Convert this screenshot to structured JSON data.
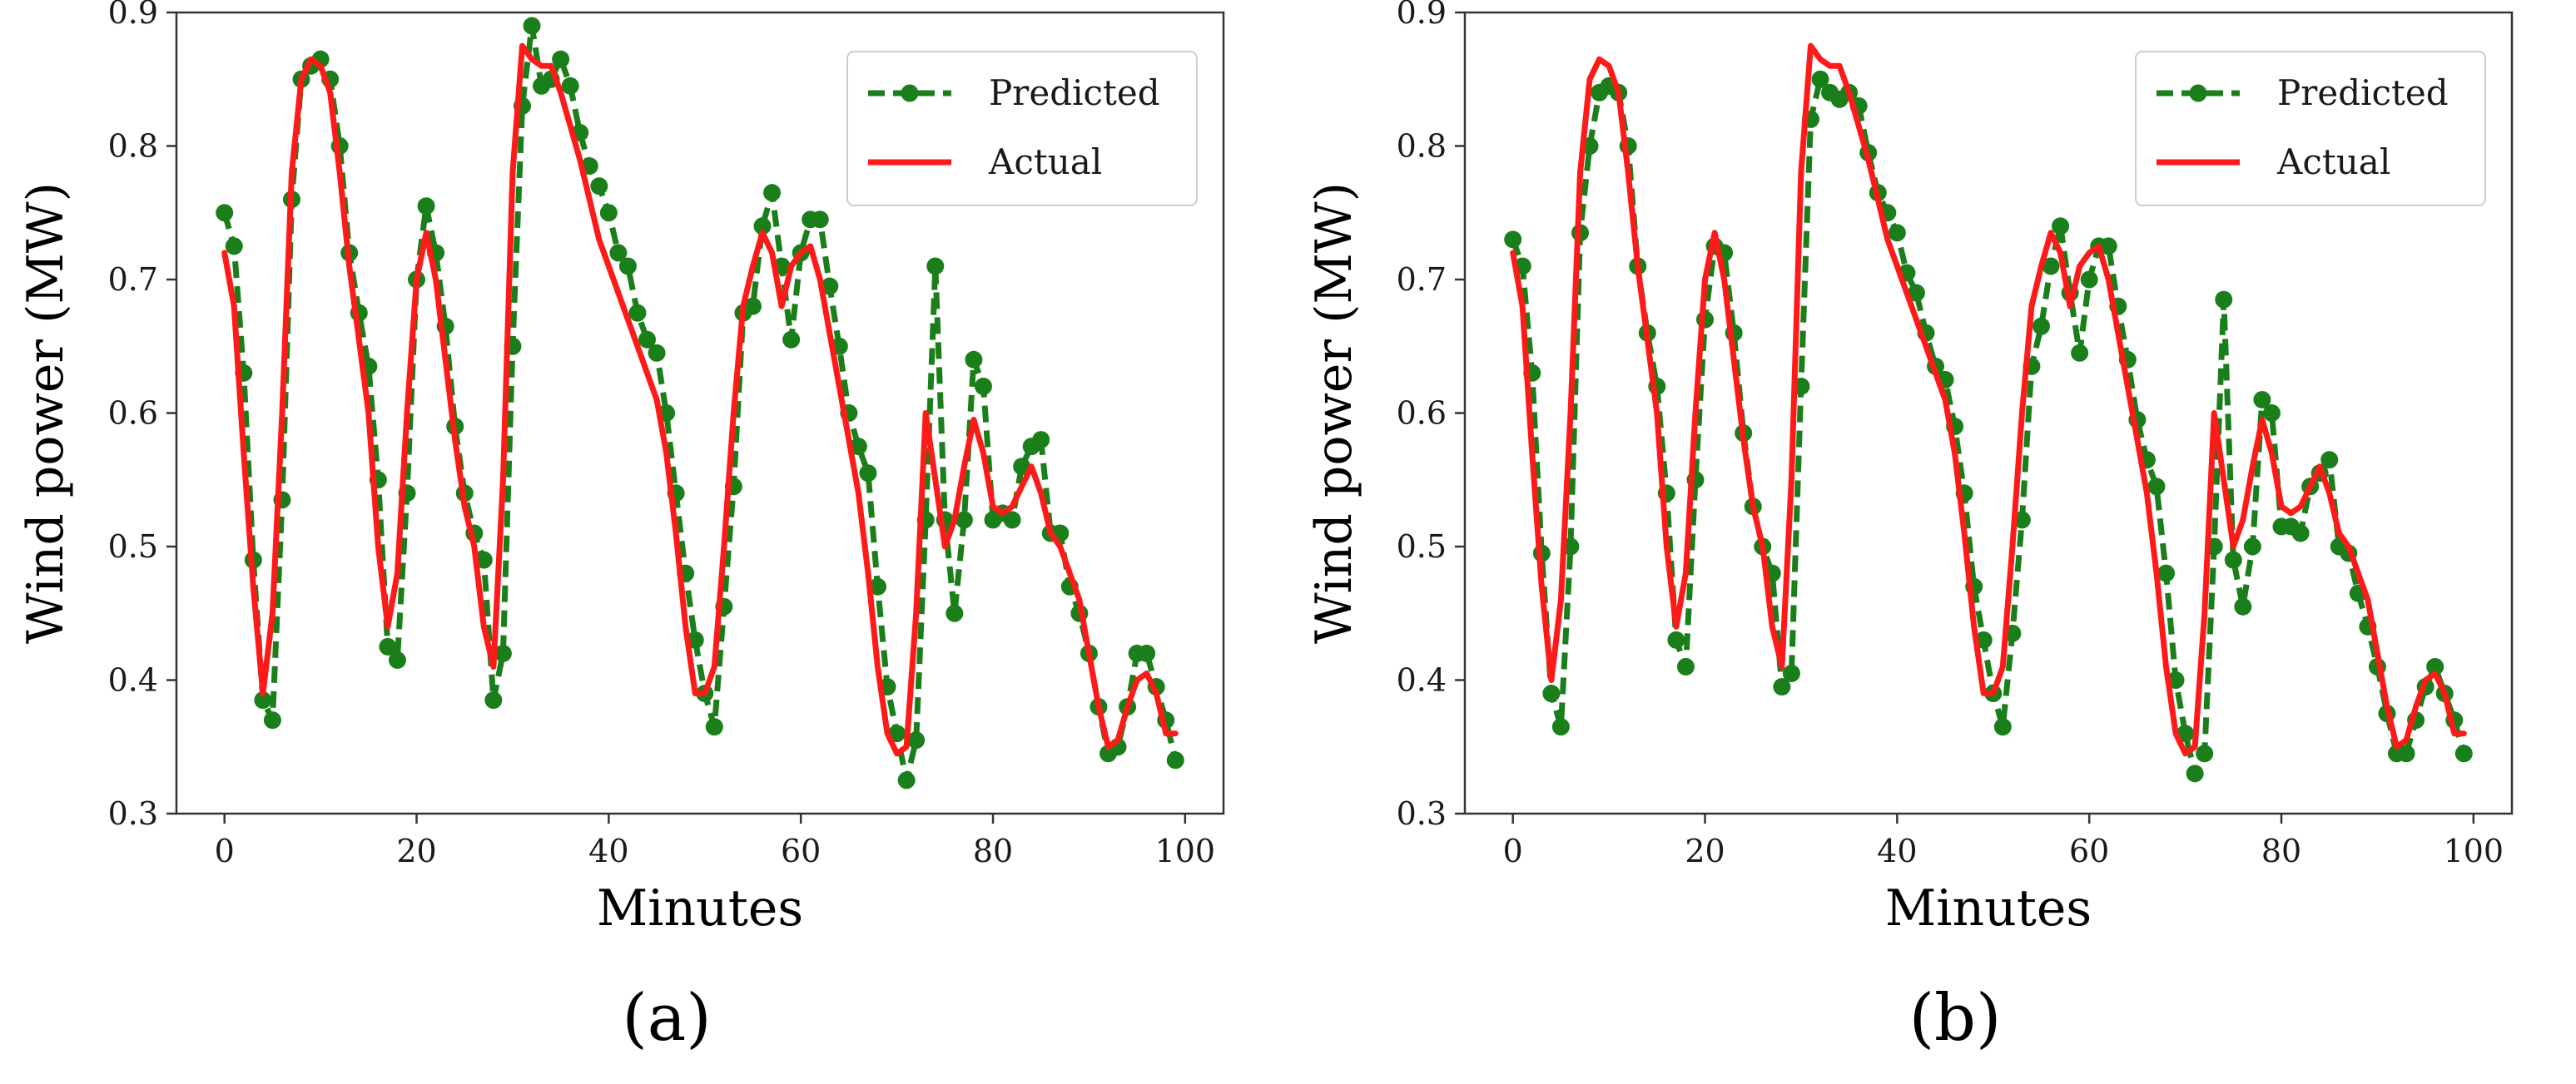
{
  "colors": {
    "predicted": "#1a7f1a",
    "actual": "#ff1a1a",
    "axis": "#333333",
    "legend_border": "#cccccc"
  },
  "chart_data": [
    {
      "type": "line",
      "caption": "(a)",
      "xlabel": "Minutes",
      "ylabel": "Wind power (MW)",
      "xlim": [
        -5,
        104
      ],
      "ylim": [
        0.3,
        0.9
      ],
      "xticks": [
        0,
        20,
        40,
        60,
        80,
        100
      ],
      "xtick_labels": [
        "0",
        "20",
        "40",
        "60",
        "80",
        "100"
      ],
      "yticks": [
        0.3,
        0.4,
        0.5,
        0.6,
        0.7,
        0.8,
        0.9
      ],
      "ytick_labels": [
        "0.3",
        "0.4",
        "0.5",
        "0.6",
        "0.7",
        "0.8",
        "0.9"
      ],
      "legend": [
        "Predicted",
        "Actual"
      ],
      "series": [
        {
          "name": "Predicted",
          "style": "dashed-with-markers",
          "x": [
            0,
            1,
            2,
            3,
            4,
            5,
            6,
            7,
            8,
            9,
            10,
            11,
            12,
            13,
            14,
            15,
            16,
            17,
            18,
            19,
            20,
            21,
            22,
            23,
            24,
            25,
            26,
            27,
            28,
            29,
            30,
            31,
            32,
            33,
            34,
            35,
            36,
            37,
            38,
            39,
            40,
            41,
            42,
            43,
            44,
            45,
            46,
            47,
            48,
            49,
            50,
            51,
            52,
            53,
            54,
            55,
            56,
            57,
            58,
            59,
            60,
            61,
            62,
            63,
            64,
            65,
            66,
            67,
            68,
            69,
            70,
            71,
            72,
            73,
            74,
            75,
            76,
            77,
            78,
            79,
            80,
            81,
            82,
            83,
            84,
            85,
            86,
            87,
            88,
            89,
            90,
            91,
            92,
            93,
            94,
            95,
            96,
            97,
            98,
            99
          ],
          "values": [
            0.75,
            0.725,
            0.63,
            0.49,
            0.385,
            0.37,
            0.535,
            0.76,
            0.85,
            0.86,
            0.865,
            0.85,
            0.8,
            0.72,
            0.675,
            0.635,
            0.55,
            0.425,
            0.415,
            0.54,
            0.7,
            0.755,
            0.72,
            0.665,
            0.59,
            0.54,
            0.51,
            0.49,
            0.385,
            0.42,
            0.65,
            0.83,
            0.89,
            0.845,
            0.85,
            0.865,
            0.845,
            0.81,
            0.785,
            0.77,
            0.75,
            0.72,
            0.71,
            0.675,
            0.655,
            0.645,
            0.6,
            0.54,
            0.48,
            0.43,
            0.39,
            0.365,
            0.455,
            0.545,
            0.675,
            0.68,
            0.74,
            0.765,
            0.71,
            0.655,
            0.72,
            0.745,
            0.745,
            0.695,
            0.65,
            0.6,
            0.575,
            0.555,
            0.47,
            0.395,
            0.36,
            0.325,
            0.355,
            0.52,
            0.71,
            0.52,
            0.45,
            0.52,
            0.64,
            0.62,
            0.52,
            0.525,
            0.52,
            0.56,
            0.575,
            0.58,
            0.51,
            0.51,
            0.47,
            0.45,
            0.42,
            0.38,
            0.345,
            0.35,
            0.38,
            0.42,
            0.42,
            0.395,
            0.37,
            0.34
          ]
        },
        {
          "name": "Actual",
          "style": "solid",
          "x": [
            0,
            1,
            2,
            3,
            4,
            5,
            6,
            7,
            8,
            9,
            10,
            11,
            12,
            13,
            14,
            15,
            16,
            17,
            18,
            19,
            20,
            21,
            22,
            23,
            24,
            25,
            26,
            27,
            28,
            29,
            30,
            31,
            32,
            33,
            34,
            35,
            36,
            37,
            38,
            39,
            40,
            41,
            42,
            43,
            44,
            45,
            46,
            47,
            48,
            49,
            50,
            51,
            52,
            53,
            54,
            55,
            56,
            57,
            58,
            59,
            60,
            61,
            62,
            63,
            64,
            65,
            66,
            67,
            68,
            69,
            70,
            71,
            72,
            73,
            74,
            75,
            76,
            77,
            78,
            79,
            80,
            81,
            82,
            83,
            84,
            85,
            86,
            87,
            88,
            89,
            90,
            91,
            92,
            93,
            94,
            95,
            96,
            97,
            98,
            99
          ],
          "values": [
            0.72,
            0.68,
            0.57,
            0.47,
            0.39,
            0.45,
            0.6,
            0.78,
            0.85,
            0.865,
            0.86,
            0.84,
            0.78,
            0.71,
            0.655,
            0.6,
            0.5,
            0.44,
            0.48,
            0.6,
            0.7,
            0.735,
            0.7,
            0.64,
            0.58,
            0.53,
            0.5,
            0.44,
            0.41,
            0.55,
            0.78,
            0.875,
            0.865,
            0.86,
            0.86,
            0.84,
            0.815,
            0.79,
            0.76,
            0.73,
            0.71,
            0.69,
            0.67,
            0.65,
            0.63,
            0.61,
            0.57,
            0.51,
            0.44,
            0.39,
            0.39,
            0.41,
            0.5,
            0.6,
            0.68,
            0.71,
            0.735,
            0.72,
            0.68,
            0.71,
            0.72,
            0.725,
            0.7,
            0.66,
            0.62,
            0.58,
            0.54,
            0.48,
            0.41,
            0.36,
            0.345,
            0.35,
            0.45,
            0.6,
            0.55,
            0.5,
            0.52,
            0.56,
            0.595,
            0.57,
            0.53,
            0.525,
            0.53,
            0.545,
            0.56,
            0.54,
            0.51,
            0.5,
            0.48,
            0.46,
            0.42,
            0.38,
            0.35,
            0.355,
            0.38,
            0.4,
            0.405,
            0.39,
            0.36,
            0.36
          ]
        }
      ]
    },
    {
      "type": "line",
      "caption": "(b)",
      "xlabel": "Minutes",
      "ylabel": "Wind power (MW)",
      "xlim": [
        -5,
        104
      ],
      "ylim": [
        0.3,
        0.9
      ],
      "xticks": [
        0,
        20,
        40,
        60,
        80,
        100
      ],
      "xtick_labels": [
        "0",
        "20",
        "40",
        "60",
        "80",
        "100"
      ],
      "yticks": [
        0.3,
        0.4,
        0.5,
        0.6,
        0.7,
        0.8,
        0.9
      ],
      "ytick_labels": [
        "0.3",
        "0.4",
        "0.5",
        "0.6",
        "0.7",
        "0.8",
        "0.9"
      ],
      "legend": [
        "Predicted",
        "Actual"
      ],
      "series": [
        {
          "name": "Predicted",
          "style": "dashed-with-markers",
          "x": [
            0,
            1,
            2,
            3,
            4,
            5,
            6,
            7,
            8,
            9,
            10,
            11,
            12,
            13,
            14,
            15,
            16,
            17,
            18,
            19,
            20,
            21,
            22,
            23,
            24,
            25,
            26,
            27,
            28,
            29,
            30,
            31,
            32,
            33,
            34,
            35,
            36,
            37,
            38,
            39,
            40,
            41,
            42,
            43,
            44,
            45,
            46,
            47,
            48,
            49,
            50,
            51,
            52,
            53,
            54,
            55,
            56,
            57,
            58,
            59,
            60,
            61,
            62,
            63,
            64,
            65,
            66,
            67,
            68,
            69,
            70,
            71,
            72,
            73,
            74,
            75,
            76,
            77,
            78,
            79,
            80,
            81,
            82,
            83,
            84,
            85,
            86,
            87,
            88,
            89,
            90,
            91,
            92,
            93,
            94,
            95,
            96,
            97,
            98,
            99
          ],
          "values": [
            0.73,
            0.71,
            0.63,
            0.495,
            0.39,
            0.365,
            0.5,
            0.735,
            0.8,
            0.84,
            0.845,
            0.84,
            0.8,
            0.71,
            0.66,
            0.62,
            0.54,
            0.43,
            0.41,
            0.55,
            0.67,
            0.725,
            0.72,
            0.66,
            0.585,
            0.53,
            0.5,
            0.48,
            0.395,
            0.405,
            0.62,
            0.82,
            0.85,
            0.84,
            0.835,
            0.84,
            0.83,
            0.795,
            0.765,
            0.75,
            0.735,
            0.705,
            0.69,
            0.66,
            0.635,
            0.625,
            0.59,
            0.54,
            0.47,
            0.43,
            0.39,
            0.365,
            0.435,
            0.52,
            0.635,
            0.665,
            0.71,
            0.74,
            0.69,
            0.645,
            0.7,
            0.725,
            0.725,
            0.68,
            0.64,
            0.595,
            0.565,
            0.545,
            0.48,
            0.4,
            0.36,
            0.33,
            0.345,
            0.5,
            0.685,
            0.49,
            0.455,
            0.5,
            0.61,
            0.6,
            0.515,
            0.515,
            0.51,
            0.545,
            0.555,
            0.565,
            0.5,
            0.495,
            0.465,
            0.44,
            0.41,
            0.375,
            0.345,
            0.345,
            0.37,
            0.395,
            0.41,
            0.39,
            0.37,
            0.345
          ]
        },
        {
          "name": "Actual",
          "style": "solid",
          "x": [
            0,
            1,
            2,
            3,
            4,
            5,
            6,
            7,
            8,
            9,
            10,
            11,
            12,
            13,
            14,
            15,
            16,
            17,
            18,
            19,
            20,
            21,
            22,
            23,
            24,
            25,
            26,
            27,
            28,
            29,
            30,
            31,
            32,
            33,
            34,
            35,
            36,
            37,
            38,
            39,
            40,
            41,
            42,
            43,
            44,
            45,
            46,
            47,
            48,
            49,
            50,
            51,
            52,
            53,
            54,
            55,
            56,
            57,
            58,
            59,
            60,
            61,
            62,
            63,
            64,
            65,
            66,
            67,
            68,
            69,
            70,
            71,
            72,
            73,
            74,
            75,
            76,
            77,
            78,
            79,
            80,
            81,
            82,
            83,
            84,
            85,
            86,
            87,
            88,
            89,
            90,
            91,
            92,
            93,
            94,
            95,
            96,
            97,
            98,
            99
          ],
          "values": [
            0.72,
            0.68,
            0.57,
            0.47,
            0.4,
            0.46,
            0.6,
            0.78,
            0.85,
            0.865,
            0.86,
            0.84,
            0.78,
            0.71,
            0.655,
            0.6,
            0.5,
            0.44,
            0.48,
            0.6,
            0.7,
            0.735,
            0.7,
            0.64,
            0.58,
            0.53,
            0.5,
            0.44,
            0.41,
            0.55,
            0.78,
            0.875,
            0.865,
            0.86,
            0.86,
            0.84,
            0.815,
            0.79,
            0.76,
            0.73,
            0.71,
            0.69,
            0.67,
            0.65,
            0.63,
            0.61,
            0.57,
            0.51,
            0.44,
            0.39,
            0.39,
            0.41,
            0.5,
            0.6,
            0.68,
            0.71,
            0.735,
            0.72,
            0.68,
            0.71,
            0.72,
            0.725,
            0.7,
            0.66,
            0.62,
            0.58,
            0.54,
            0.48,
            0.41,
            0.36,
            0.345,
            0.35,
            0.45,
            0.6,
            0.55,
            0.5,
            0.52,
            0.56,
            0.595,
            0.57,
            0.53,
            0.525,
            0.53,
            0.545,
            0.56,
            0.54,
            0.51,
            0.5,
            0.48,
            0.46,
            0.42,
            0.38,
            0.35,
            0.355,
            0.38,
            0.4,
            0.405,
            0.39,
            0.36,
            0.36
          ]
        }
      ]
    }
  ]
}
